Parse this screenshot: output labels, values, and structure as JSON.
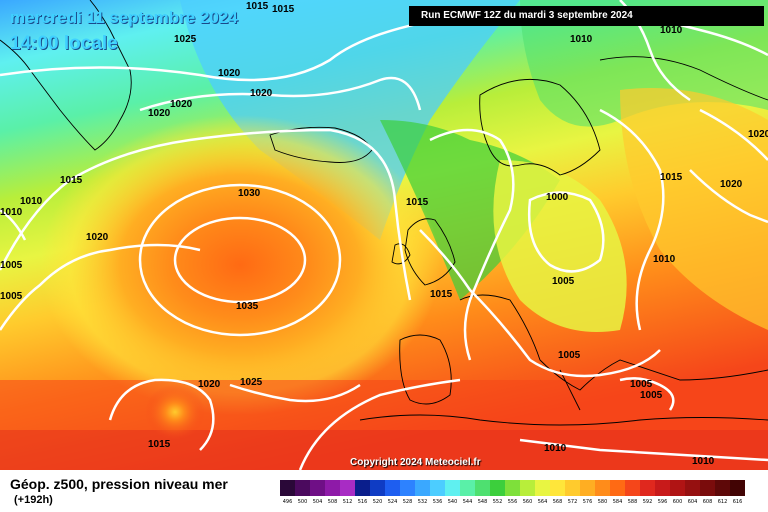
{
  "header": {
    "date": "mercredi 11 septembre 2024",
    "time": "14:00 locale",
    "run": "Run ECMWF 12Z du mardi 3 septembre 2024"
  },
  "copyright": "Copyright 2024 Meteociel.fr",
  "footer": {
    "variable": "Géop. z500, pression niveau mer",
    "lead": "(+192h)"
  },
  "isobar_labels": [
    "1015",
    "1015",
    "1025",
    "1020",
    "1020",
    "1020",
    "1020",
    "1010",
    "1015",
    "1010",
    "1020",
    "1005",
    "1005",
    "1030",
    "1035",
    "1015",
    "1020",
    "1025",
    "1015",
    "1010",
    "1015",
    "1000",
    "1005",
    "1005",
    "1010",
    "1015",
    "1020",
    "1020",
    "1005",
    "1005",
    "1010",
    "1010",
    "1010"
  ],
  "scale": {
    "labels": [
      "496",
      "500",
      "504",
      "508",
      "512",
      "516",
      "520",
      "524",
      "528",
      "532",
      "536",
      "540",
      "544",
      "548",
      "552",
      "556",
      "560",
      "564",
      "568",
      "572",
      "576",
      "580",
      "584",
      "588",
      "592",
      "596",
      "600",
      "604",
      "608",
      "612",
      "616"
    ],
    "colors": [
      "#2a0838",
      "#4b0a5e",
      "#6f0f86",
      "#8e1aa8",
      "#a82cc4",
      "#0a1e8c",
      "#0f3cc4",
      "#1e5ef0",
      "#2d82ff",
      "#3aa8ff",
      "#4ccdff",
      "#5ff0f0",
      "#5af0a8",
      "#4ee070",
      "#3ccf3c",
      "#7ee03a",
      "#b8ee3a",
      "#e8f542",
      "#ffe63a",
      "#ffcb2d",
      "#ffae22",
      "#ff8c1a",
      "#ff6a14",
      "#f5461a",
      "#e0281e",
      "#c81a1a",
      "#b01414",
      "#961010",
      "#7a0c0c",
      "#5e0808",
      "#420404"
    ]
  }
}
